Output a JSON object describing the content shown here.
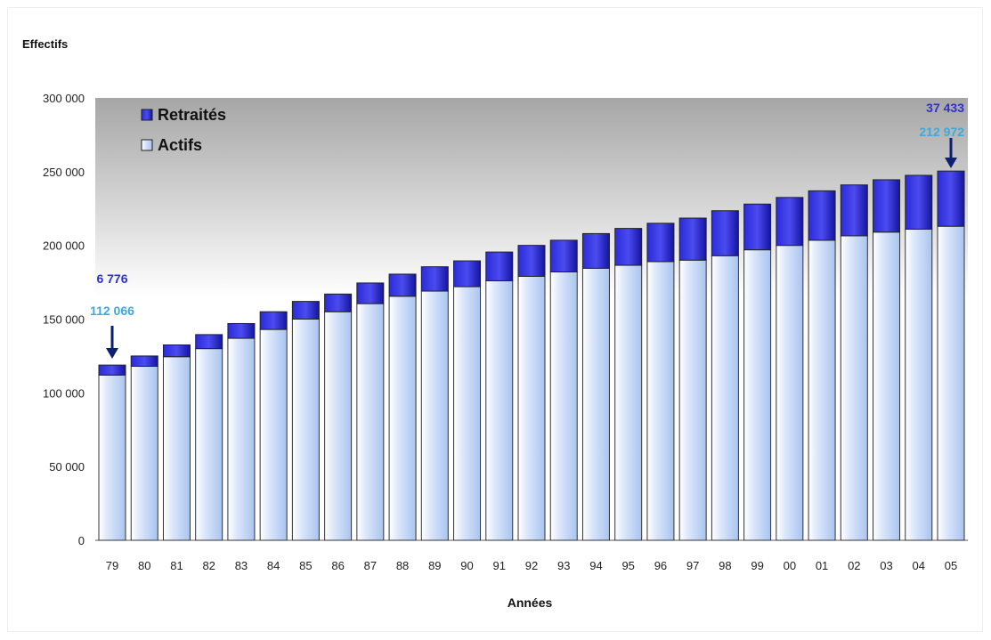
{
  "colors": {
    "actifs_top": "#ffffff",
    "actifs_bottom": "#a9c4f0",
    "retraites": "#2b2bd9",
    "retraites_dark": "#1414a0",
    "ann_retraites": "#3131c8",
    "ann_actifs": "#3fa9d9",
    "arrow": "#0b1f73",
    "plot_top": "#a6a6a6",
    "plot_bottom": "#ffffff"
  },
  "chart_data": {
    "type": "bar",
    "stacked": true,
    "title": "",
    "ylabel": "Effectifs",
    "xlabel": "Années",
    "ylim": [
      0,
      300000
    ],
    "yticks": [
      0,
      50000,
      100000,
      150000,
      200000,
      250000,
      300000
    ],
    "ytick_labels": [
      "0",
      "50 000",
      "100 000",
      "150 000",
      "200 000",
      "250 000",
      "300 000"
    ],
    "categories": [
      "79",
      "80",
      "81",
      "82",
      "83",
      "84",
      "85",
      "86",
      "87",
      "88",
      "89",
      "90",
      "91",
      "92",
      "93",
      "94",
      "95",
      "96",
      "97",
      "98",
      "99",
      "00",
      "01",
      "02",
      "03",
      "04",
      "05"
    ],
    "legend": {
      "placement": "top-left",
      "entries": [
        "Retraités",
        "Actifs"
      ]
    },
    "series": [
      {
        "name": "Actifs",
        "values": [
          112066,
          118000,
          124500,
          130000,
          137000,
          143000,
          150000,
          155000,
          160500,
          165500,
          169000,
          172000,
          176000,
          179000,
          182000,
          184500,
          186500,
          189000,
          190000,
          193000,
          197000,
          200000,
          203500,
          206500,
          209000,
          211000,
          212972
        ]
      },
      {
        "name": "Retraités",
        "values": [
          6776,
          7000,
          8000,
          9500,
          10000,
          12000,
          12000,
          12000,
          14000,
          15000,
          16500,
          17500,
          19500,
          21000,
          21500,
          23500,
          25000,
          26000,
          28500,
          30500,
          31000,
          32500,
          33500,
          34500,
          35500,
          36500,
          37433
        ]
      }
    ],
    "annotations": [
      {
        "category": "79",
        "retraites_label": "6 776",
        "actifs_label": "112 066"
      },
      {
        "category": "05",
        "retraites_label": "37 433",
        "actifs_label": "212 972"
      }
    ],
    "grid": false
  }
}
